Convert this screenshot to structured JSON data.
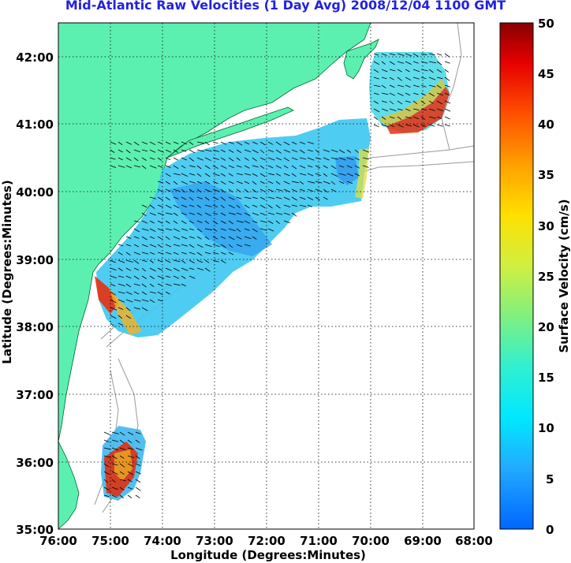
{
  "title": "Mid-Atlantic Raw Velocities (1 Day Avg) 2008/12/04 1100 GMT",
  "map": {
    "xlabel": "Longitude (Degrees:Minutes)",
    "ylabel": "Latitude (Degrees:Minutes)",
    "x_ticks": [
      "76:00",
      "75:00",
      "74:00",
      "73:00",
      "72:00",
      "71:00",
      "70:00",
      "69:00",
      "68:00"
    ],
    "y_ticks": [
      "42:00",
      "41:00",
      "40:00",
      "39:00",
      "38:00",
      "37:00",
      "36:00",
      "35:00"
    ],
    "lon_range": [
      -76,
      -68
    ],
    "lat_range": [
      35,
      42.5
    ],
    "land_color": "#5cf0b0",
    "grid": "dotted"
  },
  "colorbar": {
    "label": "Surface Velocity (cm/s)",
    "ticks": [
      "50",
      "45",
      "40",
      "35",
      "30",
      "25",
      "20",
      "15",
      "10",
      "5",
      "0"
    ],
    "range": [
      0,
      50
    ],
    "colormap": "jet"
  }
}
